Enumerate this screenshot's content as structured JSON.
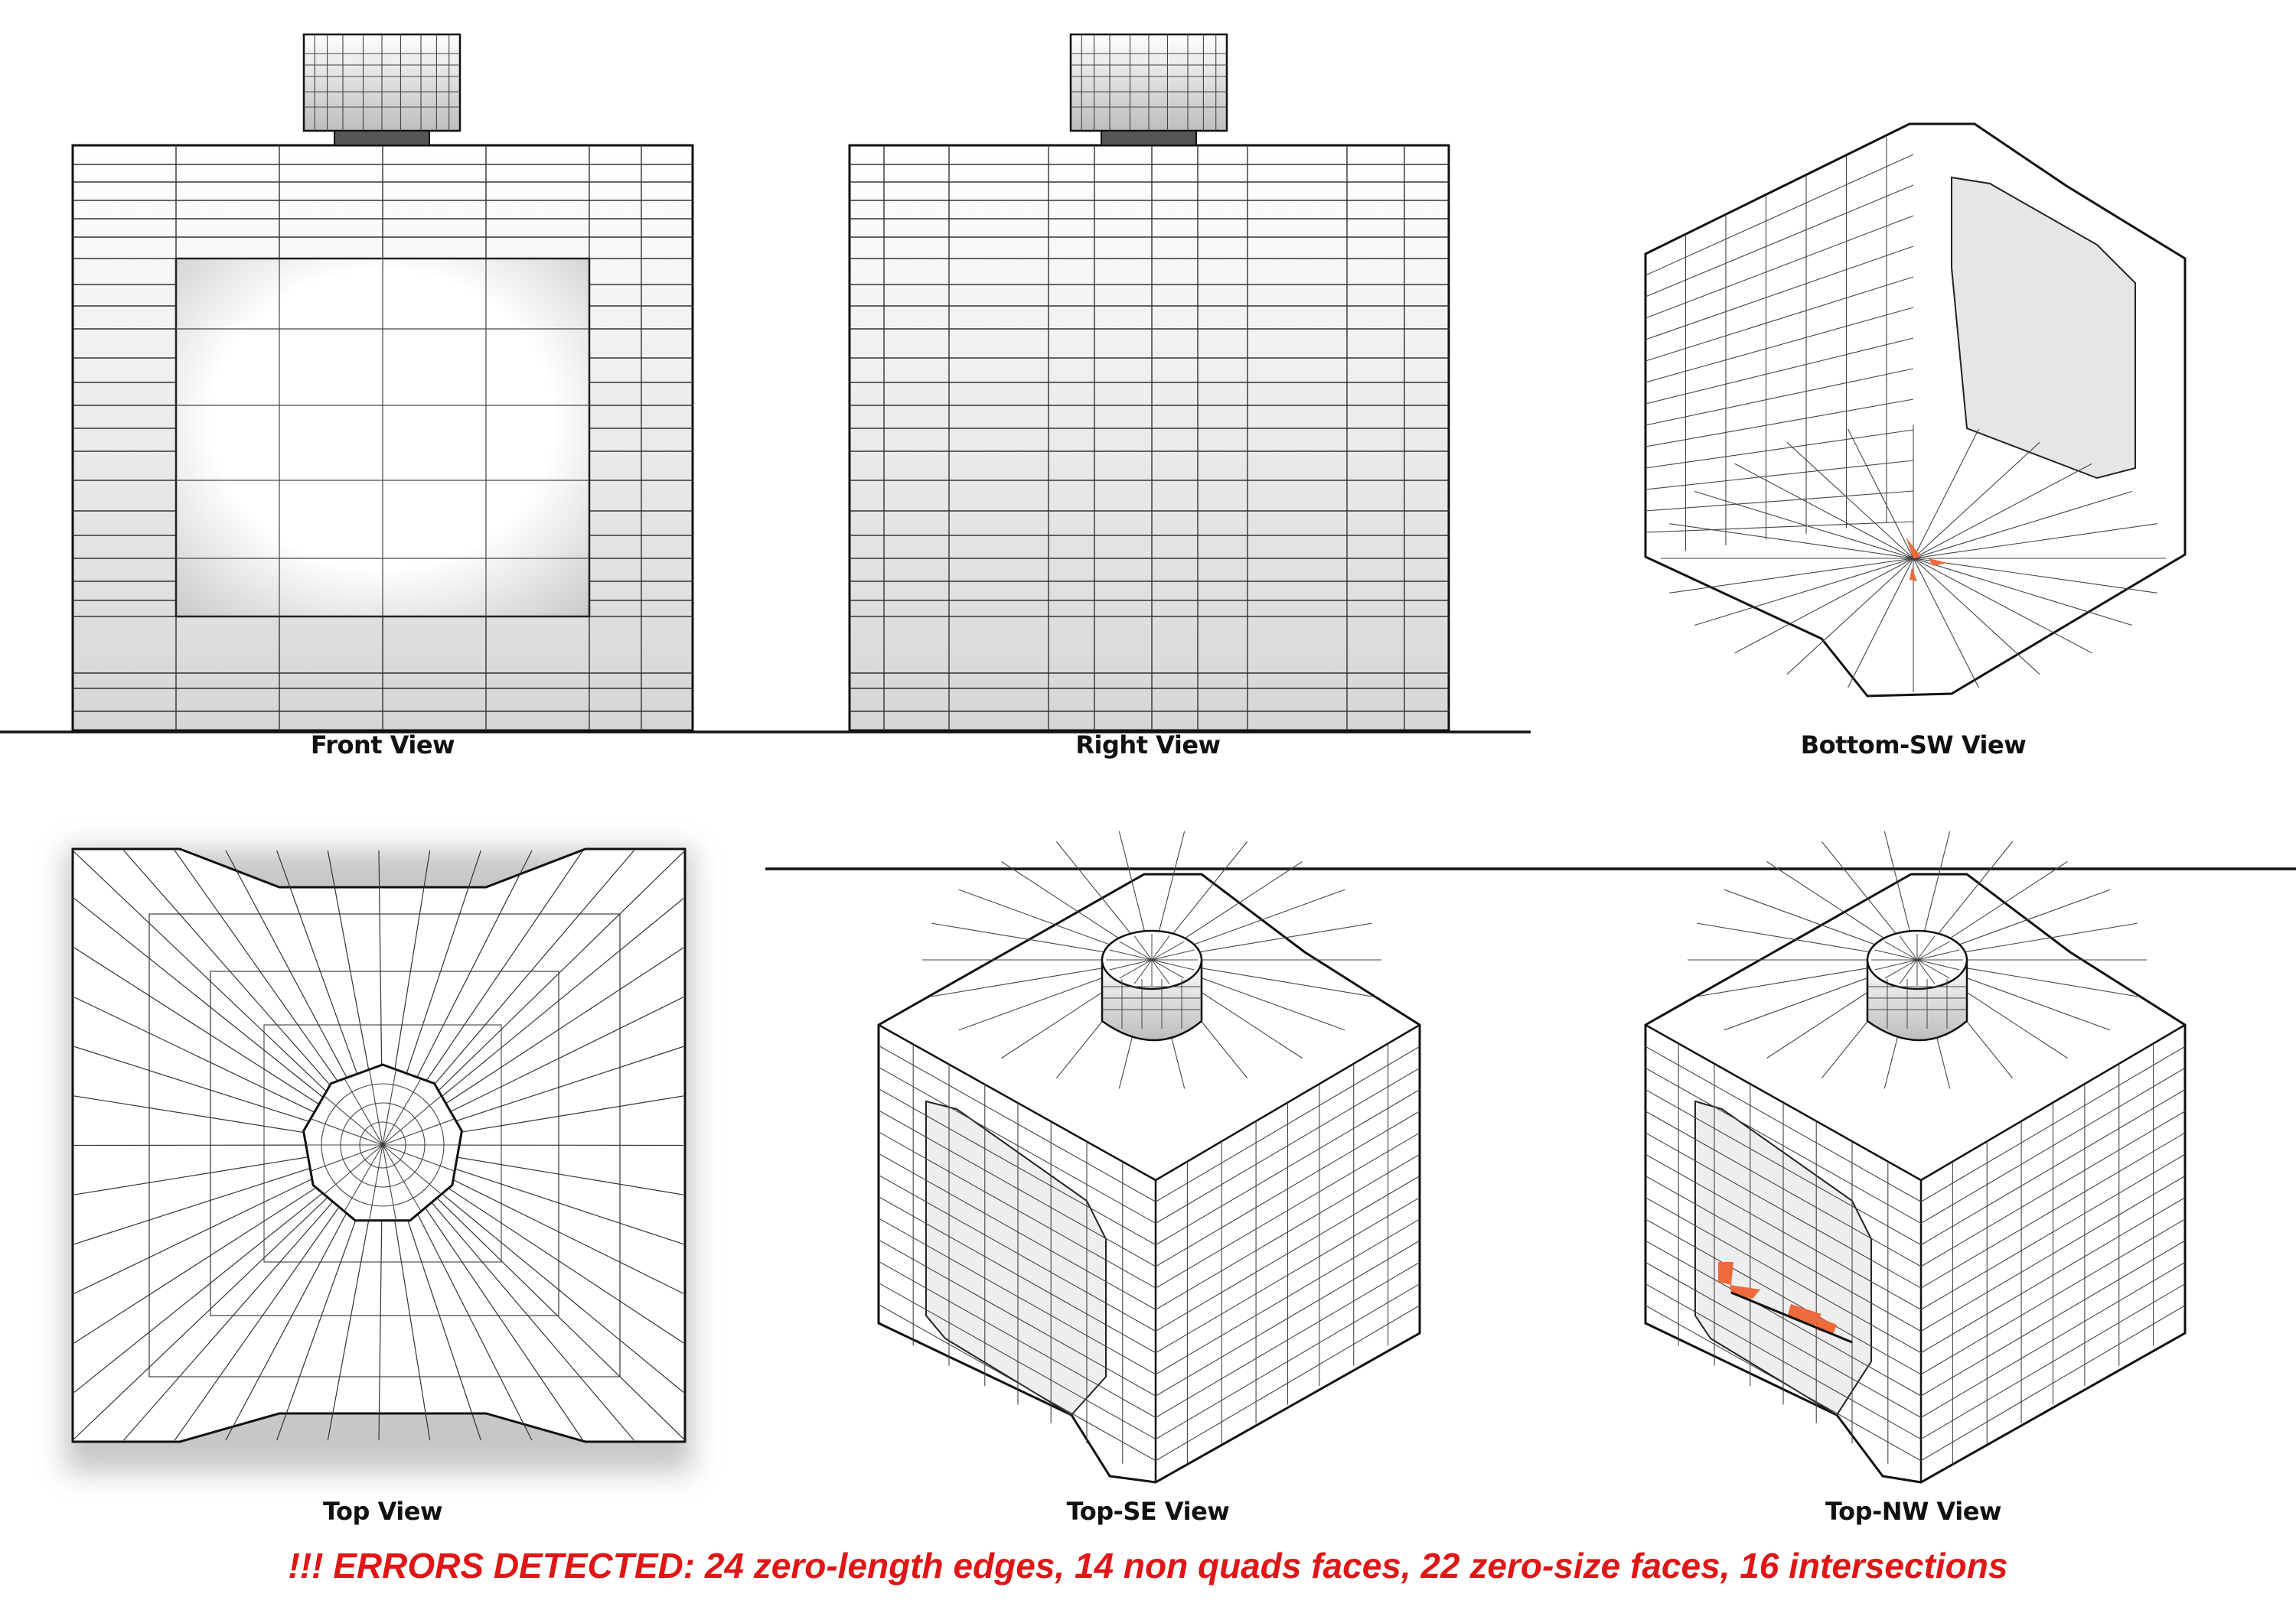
{
  "views": {
    "front": "Front View",
    "right": "Right View",
    "bottom_sw": "Bottom-SW View",
    "top": "Top View",
    "top_se": "Top-SE View",
    "top_nw": "Top-NW View"
  },
  "errors": {
    "message": "!!! ERRORS DETECTED: 24 zero-length edges, 14 non quads faces, 22 zero-size faces, 16 intersections"
  },
  "colors": {
    "error_text": "#e01616",
    "error_face": "#ef6a3a",
    "mesh_line": "#333333"
  }
}
